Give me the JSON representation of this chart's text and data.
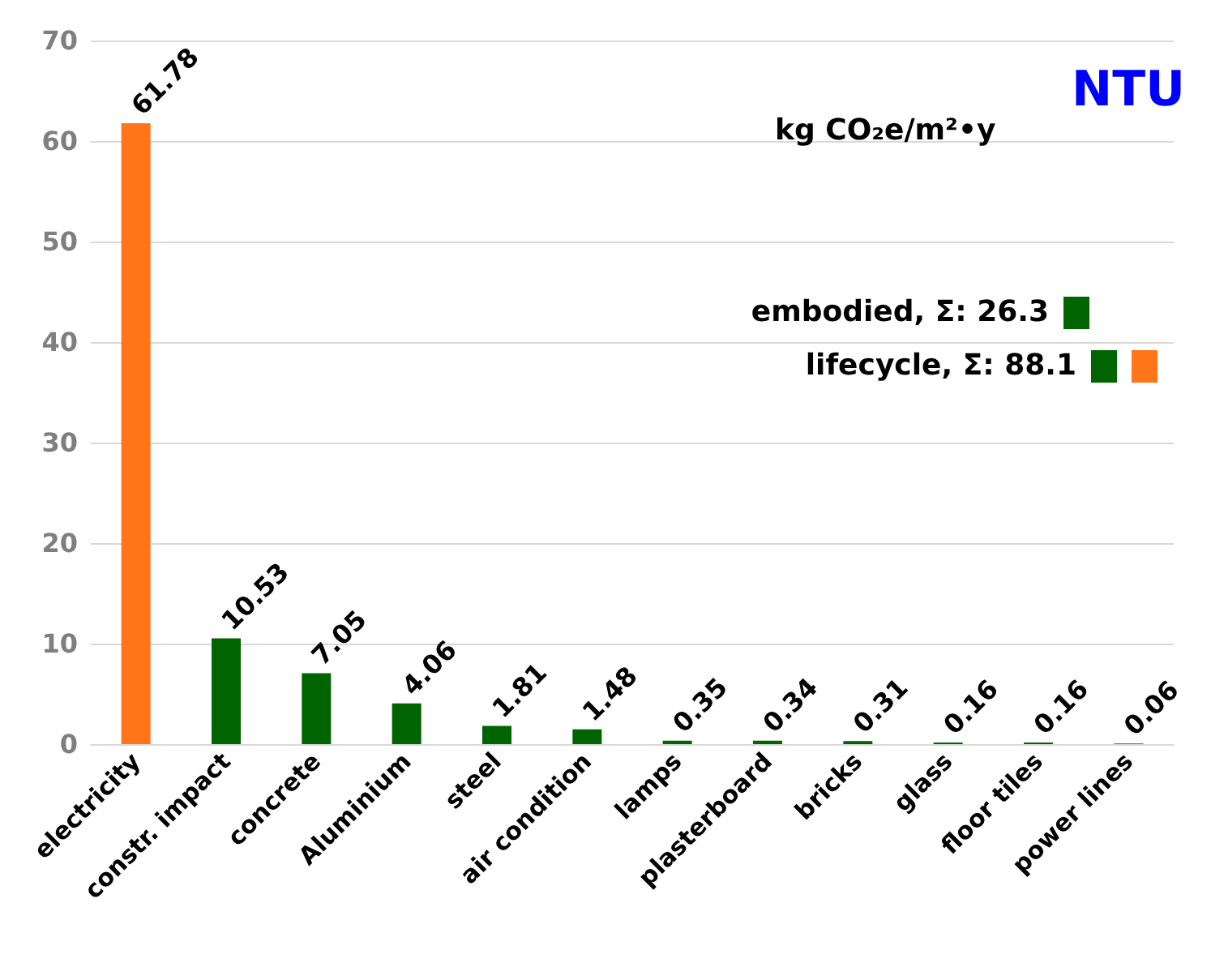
{
  "chart_data": {
    "type": "bar",
    "categories": [
      "electricity",
      "constr. impact",
      "concrete",
      "Aluminium",
      "steel",
      "air condition",
      "lamps",
      "plasterboard",
      "bricks",
      "glass",
      "floor tiles",
      "power lines"
    ],
    "values": [
      61.78,
      10.53,
      7.05,
      4.06,
      1.81,
      1.48,
      0.35,
      0.34,
      0.31,
      0.16,
      0.16,
      0.06
    ],
    "colors": [
      "#ff7518",
      "#006400",
      "#006400",
      "#006400",
      "#006400",
      "#006400",
      "#006400",
      "#006400",
      "#006400",
      "#006400",
      "#006400",
      "#006400"
    ],
    "ylim": [
      0,
      70
    ],
    "yticks": [
      0,
      10,
      20,
      30,
      40,
      50,
      60,
      70
    ],
    "grid": "y",
    "data_labels": true,
    "annotations": [
      "kg CO₂e/m²•y",
      "NTU",
      "embodied, Σ: 26.3",
      "lifecycle, Σ: 88.1"
    ]
  }
}
